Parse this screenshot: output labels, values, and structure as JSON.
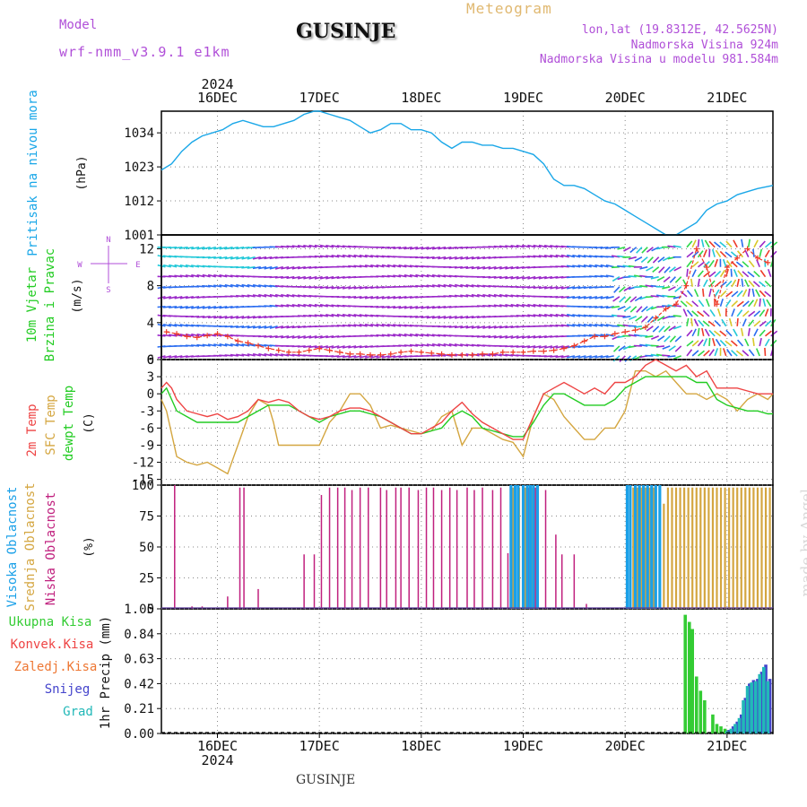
{
  "header": {
    "model_label": "Model",
    "model_value": "wrf-nmm_v3.9.1  e1km",
    "city": "GUSINJE",
    "meteogram": "Meteogram",
    "lonlat": "lon,lat (19.8312E, 42.5625N)",
    "elevation": "Nadmorska Visina 924m",
    "model_elevation": "Nadmorska Visina u modelu 981.584m",
    "made_by": "made by Angel",
    "bottom_city": "GUSINJE"
  },
  "colors": {
    "pressure": "#1aa7e8",
    "temp2m": "#ee4444",
    "sfc": "#d4a640",
    "dew": "#22cc22",
    "high_cloud": "#1aa0e8",
    "mid_cloud": "#d4a640",
    "low_cloud": "#c0207e",
    "precip_total": "#33cc33",
    "snow": "#4444cc",
    "graupel": "#22b8b8",
    "wind_purple": "#9a28c8",
    "wind_blue": "#2a6cf0",
    "wind_cyan": "#22c8d8",
    "wind_green": "#2ed84a",
    "wind_yellow": "#d8c828",
    "wind_red": "#ee3a28",
    "label_purple": "#b04fd8"
  },
  "chart_data": [
    {
      "type": "line",
      "title": "",
      "ylabel_main": "Pritisak na nivou mora",
      "ylabel_unit": "(hPa)",
      "yticks": [
        1001,
        1012,
        1023,
        1034
      ],
      "ylim": [
        1001,
        1041
      ],
      "x_day_labels": [
        "16DEC",
        "17DEC",
        "18DEC",
        "19DEC",
        "20DEC",
        "21DEC"
      ],
      "year_label": "2024",
      "xlim_days": [
        -0.55,
        5.45
      ],
      "series": [
        {
          "x": [
            -0.55,
            -0.45,
            -0.35,
            -0.25,
            -0.15,
            -0.05,
            0.05,
            0.15,
            0.25,
            0.35,
            0.45,
            0.55,
            0.65,
            0.75,
            0.85,
            0.95,
            1.0,
            1.1,
            1.2,
            1.3,
            1.4,
            1.5,
            1.6,
            1.7,
            1.8,
            1.9,
            2.0,
            2.1,
            2.2,
            2.3,
            2.4,
            2.5,
            2.6,
            2.7,
            2.8,
            2.9,
            3.0,
            3.1,
            3.2,
            3.3,
            3.4,
            3.5,
            3.6,
            3.7,
            3.8,
            3.9,
            4.0,
            4.1,
            4.2,
            4.3,
            4.4,
            4.5,
            4.6,
            4.7,
            4.8,
            4.9,
            5.0,
            5.1,
            5.2,
            5.3,
            5.45
          ],
          "values": [
            1022,
            1024,
            1028,
            1031,
            1033,
            1034,
            1035,
            1037,
            1038,
            1037,
            1036,
            1036,
            1037,
            1038,
            1040,
            1041,
            1041,
            1040,
            1039,
            1038,
            1036,
            1034,
            1035,
            1037,
            1037,
            1035,
            1035,
            1034,
            1031,
            1029,
            1031,
            1031,
            1030,
            1030,
            1029,
            1029,
            1028,
            1027,
            1024,
            1019,
            1017,
            1017,
            1016,
            1014,
            1012,
            1011,
            1009,
            1007,
            1005,
            1003,
            1001,
            1001,
            1003,
            1005,
            1009,
            1011,
            1012,
            1014,
            1015,
            1016,
            1017
          ]
        }
      ]
    },
    {
      "type": "scatter",
      "title": "",
      "ylabel_main": "10m Vjetar",
      "ylabel_sub": "Brzina i Pravac",
      "ylabel_unit": "(m/s)",
      "compass": [
        "N",
        "W",
        "E",
        "S"
      ],
      "yticks": [
        0,
        4,
        8,
        12
      ],
      "ylim": [
        0,
        13.5
      ],
      "x": [
        -0.5,
        -0.4,
        -0.3,
        -0.2,
        -0.1,
        0.0,
        0.1,
        0.2,
        0.3,
        0.4,
        0.5,
        0.6,
        0.7,
        0.8,
        0.9,
        1.0,
        1.1,
        1.2,
        1.3,
        1.4,
        1.5,
        1.6,
        1.7,
        1.8,
        1.9,
        2.0,
        2.1,
        2.2,
        2.3,
        2.4,
        2.5,
        2.6,
        2.7,
        2.8,
        2.9,
        3.0,
        3.1,
        3.2,
        3.3,
        3.4,
        3.5,
        3.6,
        3.7,
        3.8,
        3.9,
        4.0,
        4.1,
        4.2,
        4.3,
        4.4,
        4.5,
        4.6,
        4.7,
        4.8,
        4.9,
        5.0,
        5.1,
        5.2,
        5.3,
        5.4
      ],
      "speed": [
        3.0,
        2.8,
        2.5,
        2.4,
        2.6,
        2.8,
        2.5,
        2.0,
        1.8,
        1.5,
        1.2,
        1.0,
        0.8,
        0.8,
        1.0,
        1.2,
        1.0,
        0.8,
        0.6,
        0.6,
        0.5,
        0.5,
        0.6,
        0.8,
        0.9,
        0.8,
        0.7,
        0.6,
        0.5,
        0.5,
        0.5,
        0.6,
        0.6,
        0.8,
        0.8,
        0.8,
        0.9,
        0.9,
        1.0,
        1.2,
        1.5,
        2.0,
        2.5,
        2.5,
        2.8,
        3.0,
        3.2,
        3.5,
        4.5,
        5.5,
        6.0,
        8.0,
        12.0,
        10.0,
        6.0,
        10.0,
        11.0,
        12.0,
        11.0,
        10.5
      ]
    },
    {
      "type": "line",
      "title": "",
      "ylabel_lines": [
        "2m Temp",
        "SFC Temp",
        "dewpt Temp"
      ],
      "ylabel_unit": "(C)",
      "yticks": [
        -15,
        -12,
        -9,
        -6,
        -3,
        0,
        3,
        6
      ],
      "ylim": [
        -16,
        6
      ],
      "series": [
        {
          "name": "2m Temp",
          "x": [
            -0.55,
            -0.5,
            -0.45,
            -0.4,
            -0.3,
            -0.2,
            -0.1,
            0.0,
            0.1,
            0.2,
            0.3,
            0.4,
            0.5,
            0.6,
            0.7,
            0.8,
            0.9,
            1.0,
            1.1,
            1.2,
            1.3,
            1.4,
            1.5,
            1.6,
            1.7,
            1.8,
            1.9,
            2.0,
            2.1,
            2.2,
            2.3,
            2.4,
            2.5,
            2.6,
            2.7,
            2.8,
            2.9,
            3.0,
            3.1,
            3.2,
            3.3,
            3.4,
            3.5,
            3.6,
            3.7,
            3.8,
            3.9,
            4.0,
            4.1,
            4.2,
            4.3,
            4.4,
            4.5,
            4.6,
            4.7,
            4.8,
            4.9,
            5.0,
            5.1,
            5.2,
            5.3,
            5.4,
            5.45
          ],
          "values": [
            1,
            2,
            1,
            -1,
            -3,
            -3.5,
            -4,
            -3.5,
            -4.5,
            -4,
            -3,
            -1,
            -1.5,
            -1,
            -1.5,
            -3,
            -4,
            -4.5,
            -4,
            -3,
            -2.5,
            -2.5,
            -3,
            -4,
            -5,
            -6,
            -7,
            -7,
            -6,
            -5,
            -3,
            -1.5,
            -3.5,
            -5,
            -6,
            -7,
            -8,
            -8,
            -4,
            0,
            1,
            2,
            1,
            0,
            1,
            0,
            2,
            2,
            3,
            5,
            6,
            5,
            4,
            5,
            3,
            4,
            1,
            1,
            1,
            0.5,
            0,
            0,
            0
          ]
        },
        {
          "name": "SFC Temp",
          "x": [
            -0.55,
            -0.5,
            -0.45,
            -0.4,
            -0.3,
            -0.2,
            -0.1,
            0.0,
            0.1,
            0.2,
            0.3,
            0.4,
            0.5,
            0.55,
            0.6,
            0.7,
            0.8,
            0.9,
            1.0,
            1.1,
            1.2,
            1.3,
            1.4,
            1.5,
            1.6,
            1.7,
            1.8,
            1.9,
            2.0,
            2.1,
            2.2,
            2.3,
            2.4,
            2.5,
            2.6,
            2.7,
            2.8,
            2.9,
            3.0,
            3.1,
            3.2,
            3.3,
            3.4,
            3.5,
            3.6,
            3.7,
            3.8,
            3.9,
            4.0,
            4.1,
            4.2,
            4.3,
            4.4,
            4.5,
            4.6,
            4.7,
            4.8,
            4.9,
            5.0,
            5.1,
            5.2,
            5.3,
            5.4,
            5.45
          ],
          "values": [
            -1,
            -3,
            -7,
            -11,
            -12,
            -12.5,
            -12,
            -13,
            -14,
            -9,
            -4,
            -1,
            -2,
            -5,
            -9,
            -9,
            -9,
            -9,
            -9,
            -5,
            -3,
            0,
            0,
            -2,
            -6,
            -5.5,
            -6,
            -6.5,
            -7,
            -6.5,
            -4,
            -3,
            -9,
            -6,
            -6,
            -7,
            -8,
            -8.5,
            -11,
            -4,
            0,
            -1,
            -4,
            -6,
            -8,
            -8,
            -6,
            -6,
            -3,
            4,
            4,
            3,
            4,
            2,
            0,
            0,
            -1,
            0,
            -1,
            -3,
            -1,
            0,
            -1,
            0
          ]
        },
        {
          "name": "dewpt Temp",
          "x": [
            -0.55,
            -0.5,
            -0.45,
            -0.4,
            -0.3,
            -0.2,
            -0.1,
            0.0,
            0.1,
            0.2,
            0.3,
            0.4,
            0.5,
            0.6,
            0.7,
            0.8,
            0.9,
            1.0,
            1.1,
            1.2,
            1.3,
            1.4,
            1.5,
            1.6,
            1.7,
            1.8,
            1.9,
            2.0,
            2.1,
            2.2,
            2.3,
            2.4,
            2.5,
            2.6,
            2.7,
            2.8,
            2.9,
            3.0,
            3.1,
            3.2,
            3.3,
            3.4,
            3.5,
            3.6,
            3.7,
            3.8,
            3.9,
            4.0,
            4.1,
            4.2,
            4.3,
            4.4,
            4.5,
            4.6,
            4.7,
            4.8,
            4.9,
            5.0,
            5.1,
            5.2,
            5.3,
            5.4,
            5.45
          ],
          "values": [
            0,
            1,
            -1,
            -3,
            -4,
            -5,
            -5,
            -5,
            -5,
            -5,
            -4,
            -3,
            -2,
            -2,
            -2,
            -3,
            -4,
            -5,
            -4,
            -3.5,
            -3,
            -3,
            -3.5,
            -4,
            -5,
            -6,
            -7,
            -7,
            -6.5,
            -6,
            -4,
            -3,
            -4,
            -6,
            -6.5,
            -7,
            -7.5,
            -7.5,
            -5,
            -2,
            0,
            0,
            -1,
            -2,
            -2,
            -2,
            -1,
            1,
            2,
            3,
            3,
            3,
            3,
            3,
            2,
            2,
            -1,
            -2,
            -2.5,
            -3,
            -3,
            -3.5,
            -3.5
          ]
        }
      ]
    },
    {
      "type": "bar",
      "title": "",
      "ylabel_lines": [
        "Visoka Oblacnost",
        "Srednja Oblacnost",
        "Niska Oblacnost"
      ],
      "ylabel_unit": "(%)",
      "yticks": [
        0,
        25,
        50,
        75,
        100
      ],
      "ylim": [
        0,
        100
      ],
      "series": [
        {
          "name": "Niska Oblacnost",
          "x": [
            -0.42,
            -0.25,
            -0.15,
            0.1,
            0.22,
            0.26,
            0.4,
            0.85,
            0.95,
            1.02,
            1.1,
            1.18,
            1.25,
            1.32,
            1.4,
            1.48,
            1.6,
            1.66,
            1.75,
            1.8,
            1.88,
            1.97,
            2.05,
            2.12,
            2.2,
            2.28,
            2.35,
            2.45,
            2.52,
            2.6,
            2.7,
            2.78,
            2.85,
            2.92,
            3.0,
            3.05,
            3.12,
            3.22,
            3.32,
            3.38,
            3.5,
            3.62
          ],
          "values": [
            100,
            2,
            2,
            10,
            98,
            98,
            16,
            44,
            44,
            92,
            98,
            98,
            98,
            96,
            98,
            98,
            98,
            96,
            98,
            98,
            98,
            96,
            98,
            98,
            96,
            98,
            96,
            98,
            96,
            98,
            96,
            98,
            45,
            45,
            95,
            98,
            98,
            96,
            60,
            44,
            44,
            4
          ]
        },
        {
          "name": "Srednja Oblacnost",
          "x": [
            2.9,
            2.96,
            3.02,
            3.08,
            4.08,
            4.12,
            4.16,
            4.2,
            4.24,
            4.28,
            4.38,
            4.42,
            4.46,
            4.5,
            4.54,
            4.58,
            4.62,
            4.66,
            4.7,
            4.74,
            4.78,
            4.82,
            4.86,
            4.9,
            4.94,
            4.98,
            5.02,
            5.06,
            5.1,
            5.14,
            5.18,
            5.22,
            5.26,
            5.3,
            5.34,
            5.38,
            5.42
          ],
          "values": [
            98,
            98,
            98,
            98,
            98,
            98,
            98,
            98,
            98,
            98,
            85,
            98,
            98,
            98,
            98,
            98,
            98,
            98,
            98,
            98,
            98,
            98,
            98,
            98,
            98,
            98,
            98,
            98,
            98,
            98,
            98,
            98,
            98,
            98,
            98,
            98,
            98
          ]
        },
        {
          "name": "Visoka Oblacnost",
          "x": [
            2.88,
            2.92,
            2.95,
            3.0,
            3.04,
            3.07,
            3.1,
            3.14,
            4.02,
            4.05,
            4.1,
            4.14,
            4.18,
            4.22,
            4.26,
            4.3,
            4.34
          ],
          "values": [
            100,
            100,
            100,
            100,
            100,
            100,
            100,
            100,
            100,
            100,
            100,
            100,
            100,
            100,
            100,
            100,
            100
          ]
        }
      ]
    },
    {
      "type": "bar",
      "title": "",
      "legend": [
        "Ukupna Kisa",
        "Konvek.Kisa",
        "Zaledj.Kisa",
        "Snijeg",
        "Grad"
      ],
      "legend_colors": [
        "#33cc33",
        "#ee4444",
        "#ee7733",
        "#4444cc",
        "#22b8b8"
      ],
      "ylabel_unit": "1hr Precip (mm)",
      "yticks": [
        0,
        0.21,
        0.42,
        0.63,
        0.84,
        1.05
      ],
      "ylim": [
        0,
        1.05
      ],
      "series": [
        {
          "name": "Ukupna Kisa",
          "x": [
            4.59,
            4.63,
            4.66,
            4.7,
            4.74,
            4.78,
            4.86,
            4.9,
            4.94,
            4.98
          ],
          "values": [
            1.0,
            0.94,
            0.88,
            0.48,
            0.36,
            0.28,
            0.16,
            0.08,
            0.06,
            0.04
          ]
        },
        {
          "name": "Snijeg",
          "x": [
            5.02,
            5.06,
            5.1,
            5.14,
            5.18,
            5.22,
            5.26,
            5.3,
            5.34,
            5.38,
            5.42
          ],
          "values": [
            0.03,
            0.06,
            0.1,
            0.16,
            0.3,
            0.42,
            0.45,
            0.46,
            0.52,
            0.58,
            0.46
          ]
        },
        {
          "name": "Grad",
          "x": [
            5.0,
            5.04,
            5.08,
            5.12,
            5.16,
            5.2,
            5.24,
            5.28,
            5.32,
            5.36,
            5.4
          ],
          "values": [
            0.02,
            0.04,
            0.08,
            0.13,
            0.28,
            0.4,
            0.43,
            0.44,
            0.5,
            0.56,
            0.44
          ]
        }
      ]
    }
  ]
}
